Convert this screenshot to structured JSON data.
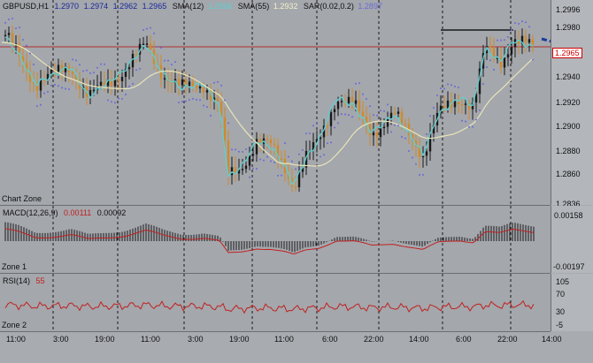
{
  "chart": {
    "symbol": "GBPUSD,H1",
    "ohlc": [
      "1.2970",
      "1.2974",
      "1.2962",
      "1.2965"
    ],
    "indicators": [
      {
        "label": "SMA(12)",
        "value": "1.2966"
      },
      {
        "label": "SMA(55)",
        "value": "1.2932"
      },
      {
        "label": "SAR(0.02,0.2)",
        "value": "1.2897"
      }
    ],
    "zone_name": "Chart Zone",
    "current_price": "1.2965",
    "price_ticks": [
      "1.2996",
      "1.2980",
      "1.2960",
      "1.2940",
      "1.2920",
      "1.2900",
      "1.2880",
      "1.2860",
      "1.2836"
    ]
  },
  "macd": {
    "title": "MACD(12,26,9)",
    "v1": "0.00111",
    "v2": "0.00092",
    "zone_name": "Zone 1",
    "ticks": [
      "0.00158",
      "-0.00197"
    ]
  },
  "rsi": {
    "title": "RSI(14)",
    "value": "55",
    "zone_name": "Zone 2",
    "ticks": [
      "105",
      "70",
      "30",
      "-5"
    ]
  },
  "time_axis": [
    "11:00",
    "3:00",
    "19:00",
    "11:00",
    "3:00",
    "19:00",
    "11:00",
    "6:00",
    "22:00",
    "14:00",
    "6:00",
    "22:00",
    "14:00"
  ],
  "colors": {
    "background": "#a4a7ac",
    "bull": "#1a1a1a",
    "bear": "#d08a2a",
    "sma12": "#5ecfd0",
    "sma55": "#e8e4b8",
    "sar": "#6a6ad8",
    "macd_signal": "#c02020",
    "rsi_line": "#c02020",
    "hline": "#b03030",
    "arrow": "#1a3aa0"
  }
}
